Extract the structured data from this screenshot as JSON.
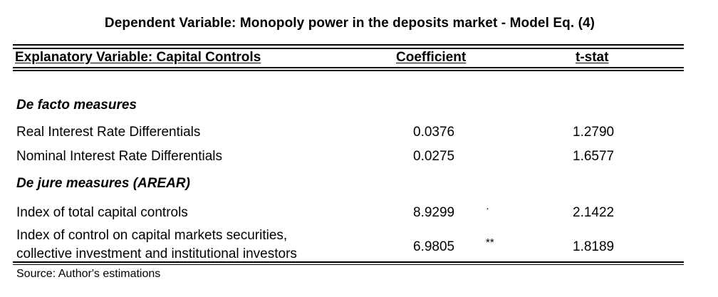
{
  "title": "Dependent Variable: Monopoly power in the deposits market - Model Eq. (4)",
  "columns": [
    "Explanatory Variable: Capital Controls",
    "Coefficient",
    "t-stat"
  ],
  "sections": [
    {
      "heading": "De facto measures",
      "rows": [
        {
          "label": "Real Interest Rate Differentials",
          "coefficient": "0.0376",
          "stars": "",
          "tstat": "1.2790"
        },
        {
          "label": "Nominal Interest Rate Differentials",
          "coefficient": "0.0275",
          "stars": "",
          "tstat": "1.6577"
        }
      ]
    },
    {
      "heading": "De jure measures (AREAR)",
      "rows": [
        {
          "label": "Index of total capital controls",
          "coefficient": "8.9299",
          "stars": "·",
          "tstat": "2.1422"
        },
        {
          "label_line1": "Index of control on capital markets securities,",
          "label_line2": "collective investment and institutional investors",
          "coefficient": "6.9805",
          "stars": "**",
          "tstat": "1.8189"
        }
      ]
    }
  ],
  "source": "Source: Author's estimations"
}
